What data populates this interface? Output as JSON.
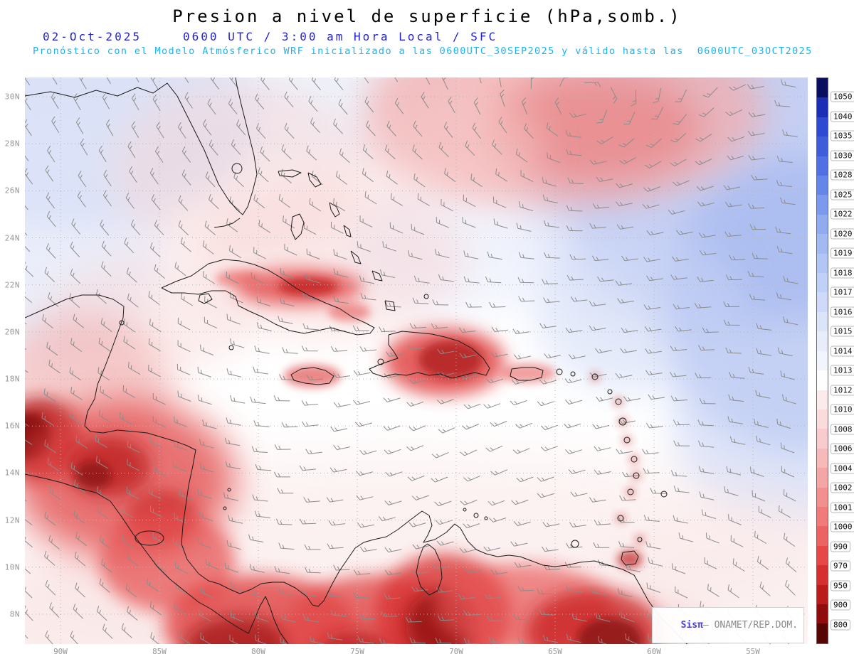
{
  "header": {
    "title": "Presion a nivel de superficie (hPa,somb.)",
    "date": "02-Oct-2025",
    "time_info": "0600 UTC / 3:00 am Hora Local / SFC",
    "forecast_line": "Pronóstico con el Modelo Atmósferico WRF inicializado a las 0600UTC_30SEP2025 y válido hasta las  0600UTC_03OCT2025"
  },
  "map": {
    "lat_labels": [
      "30N",
      "28N",
      "26N",
      "24N",
      "22N",
      "20N",
      "18N",
      "16N",
      "14N",
      "12N",
      "10N",
      "8N"
    ],
    "lon_labels": [
      "90W",
      "85W",
      "80W",
      "75W",
      "70W",
      "65W",
      "60W",
      "55W"
    ]
  },
  "colorbar": {
    "units": "hPa",
    "values": [
      "1050",
      "1040",
      "1035",
      "1030",
      "1028",
      "1025",
      "1022",
      "1020",
      "1019",
      "1018",
      "1017",
      "1016",
      "1015",
      "1014",
      "1013",
      "1012",
      "1010",
      "1008",
      "1006",
      "1004",
      "1002",
      "1001",
      "1000",
      "990",
      "970",
      "950",
      "900",
      "800"
    ],
    "colors": [
      "#0a0e5e",
      "#1c2fb4",
      "#2e49d2",
      "#3f5cda",
      "#5270e2",
      "#6685e8",
      "#7c99ed",
      "#90abf0",
      "#a2b9f2",
      "#b2c5f4",
      "#c1d0f6",
      "#cfdaf8",
      "#dce4fa",
      "#e9edfb",
      "#f3f5fd",
      "#fefefe",
      "#fcebeb",
      "#fadcdc",
      "#f8cccc",
      "#f6baba",
      "#f4a6a6",
      "#f29090",
      "#ef7b7b",
      "#ec6363",
      "#e64848",
      "#d62f2f",
      "#ba1c1c",
      "#8f0d0d",
      "#570404"
    ]
  },
  "watermark": {
    "prefix": "Sisπ",
    "text": "– ONAMET/REP.DOM."
  },
  "chart_data": {
    "type": "heatmap",
    "title": "Presion a nivel de superficie (hPa,somb.)",
    "variable": "surface pressure shaded (hPa) with wind barbs",
    "model": "WRF",
    "valid_time": "02-Oct-2025 0600 UTC / 3:00 am Hora Local / SFC",
    "init_time": "0600UTC_30SEP2025",
    "end_time": "0600UTC_03OCT2025",
    "x_ticks": [
      "90W",
      "85W",
      "80W",
      "75W",
      "70W",
      "65W",
      "60W",
      "55W"
    ],
    "y_ticks": [
      "30N",
      "28N",
      "26N",
      "24N",
      "22N",
      "20N",
      "18N",
      "16N",
      "14N",
      "12N",
      "10N",
      "8N"
    ],
    "colorbar_values": [
      1050,
      1040,
      1035,
      1030,
      1028,
      1025,
      1022,
      1020,
      1019,
      1018,
      1017,
      1016,
      1015,
      1014,
      1013,
      1012,
      1010,
      1008,
      1006,
      1004,
      1002,
      1001,
      1000,
      990,
      970,
      950,
      900,
      800
    ],
    "legend_position": "right",
    "notable_features": [
      "high pressure (blue, ~1016-1020 hPa) over northern Atlantic and top-right of domain",
      "near 1013 hPa white band across central Caribbean",
      "low pressure / terrain-lowered values (red, <1010 hPa) over Cuba, Hispaniola, Central America and northern South America"
    ]
  }
}
